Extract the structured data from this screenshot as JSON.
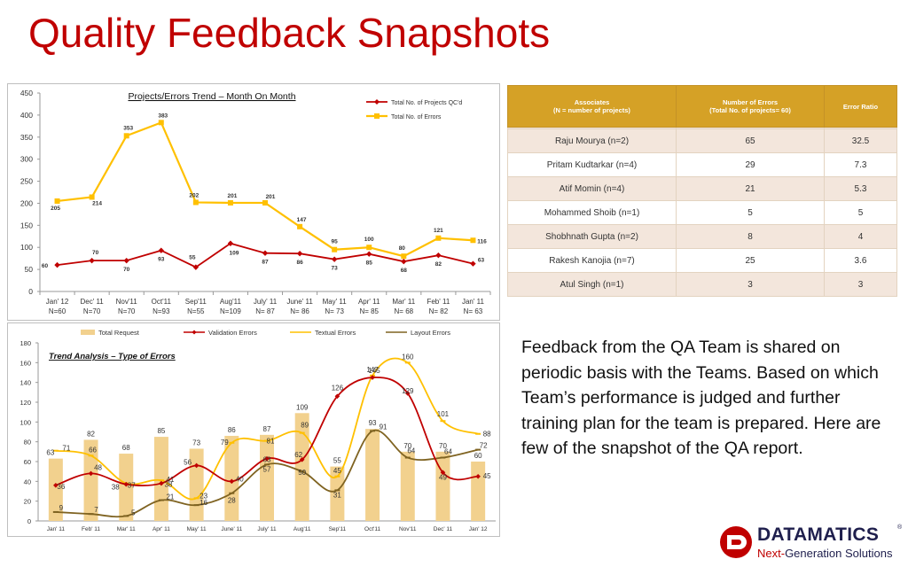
{
  "page": {
    "title": "Quality Feedback Snapshots",
    "description": "Feedback from the QA Team is shared on periodic basis with the Teams. Based on which Team’s performance is judged and further training plan for the team is prepared. Here are few of the snapshot of the QA report."
  },
  "logo": {
    "name": "DATAMATICS",
    "registered": "®",
    "tagline_prefix": "Next-",
    "tagline_rest": "Generation Solutions"
  },
  "colors": {
    "title": "#c00000",
    "red_series": "#c00000",
    "gold_series": "#ffc000",
    "brown_series": "#7f6321",
    "bar_fill": "#f2d18e",
    "table_header": "#d5a126"
  },
  "table": {
    "headers": [
      [
        "Associates",
        "(N = number of projects)"
      ],
      [
        "Number of Errors",
        "(Total No. of projects= 60)"
      ],
      [
        "Error Ratio"
      ]
    ],
    "rows": [
      [
        "Raju Mourya (n=2)",
        "65",
        "32.5"
      ],
      [
        "Pritam Kudtarkar (n=4)",
        "29",
        "7.3"
      ],
      [
        "Atif Momin (n=4)",
        "21",
        "5.3"
      ],
      [
        "Mohammed Shoib (n=1)",
        "5",
        "5"
      ],
      [
        "Shobhnath Gupta (n=2)",
        "8",
        "4"
      ],
      [
        "Rakesh Kanojia (n=7)",
        "25",
        "3.6"
      ],
      [
        "Atul Singh (n=1)",
        "3",
        "3"
      ]
    ]
  },
  "chart_data": [
    {
      "type": "line",
      "title": "Projects/Errors Trend – Month On Month",
      "categories": [
        "Jan' 12",
        "Dec' 11",
        "Nov'11",
        "Oct'11",
        "Sep'11",
        "Aug'11",
        "July' 11",
        "June' 11",
        "May' 11",
        "Apr' 11",
        "Mar' 11",
        "Feb' 11",
        "Jan' 11"
      ],
      "sublabels": [
        "N=60",
        "N=70",
        "N=70",
        "N=93",
        "N=55",
        "N=109",
        "N= 87",
        "N= 86",
        "N= 73",
        "N= 85",
        "N= 68",
        "N= 82",
        "N= 63"
      ],
      "series": [
        {
          "name": "Total No. of Projects QC'd",
          "values": [
            60,
            70,
            70,
            93,
            55,
            109,
            87,
            86,
            73,
            85,
            68,
            82,
            63
          ]
        },
        {
          "name": "Total No. of Errors",
          "values": [
            205,
            214,
            353,
            383,
            202,
            201,
            201,
            147,
            95,
            100,
            80,
            121,
            116
          ]
        }
      ],
      "ylim": [
        0,
        450
      ],
      "yticks": [
        "0",
        "50",
        "100",
        "150",
        "200",
        "250",
        "300",
        "350",
        "400",
        "450"
      ],
      "grid": false,
      "legend": "top-right"
    },
    {
      "type": "bar",
      "title": "Trend Analysis – Type of Errors",
      "categories": [
        "Jan' 11",
        "Feb' 11",
        "Mar' 11",
        "Apr' 11",
        "May' 11",
        "June' 11",
        "July' 11",
        "Aug'11",
        "Sep'11",
        "Oct'11",
        "Nov'11",
        "Dec' 11",
        "Jan' 12"
      ],
      "series": [
        {
          "name": "Total Request",
          "kind": "bar",
          "values": [
            63,
            82,
            68,
            85,
            73,
            86,
            87,
            109,
            55,
            93,
            70,
            70,
            60
          ]
        },
        {
          "name": "Validation Errors",
          "kind": "line",
          "values": [
            36,
            48,
            37,
            38,
            56,
            40,
            63,
            62,
            126,
            145,
            129,
            49,
            45
          ]
        },
        {
          "name": "Textual Errors",
          "kind": "line",
          "values": [
            71,
            66,
            38,
            41,
            23,
            79,
            81,
            89,
            45,
            147,
            160,
            101,
            88
          ]
        },
        {
          "name": "Layout Errors",
          "kind": "line",
          "values": [
            9,
            7,
            5,
            21,
            16,
            28,
            57,
            50,
            31,
            91,
            64,
            64,
            72
          ]
        }
      ],
      "ylim": [
        0,
        180
      ],
      "yticks": [
        "0",
        "20",
        "40",
        "60",
        "80",
        "100",
        "120",
        "140",
        "160",
        "180"
      ],
      "grid": false,
      "legend": "top"
    }
  ]
}
